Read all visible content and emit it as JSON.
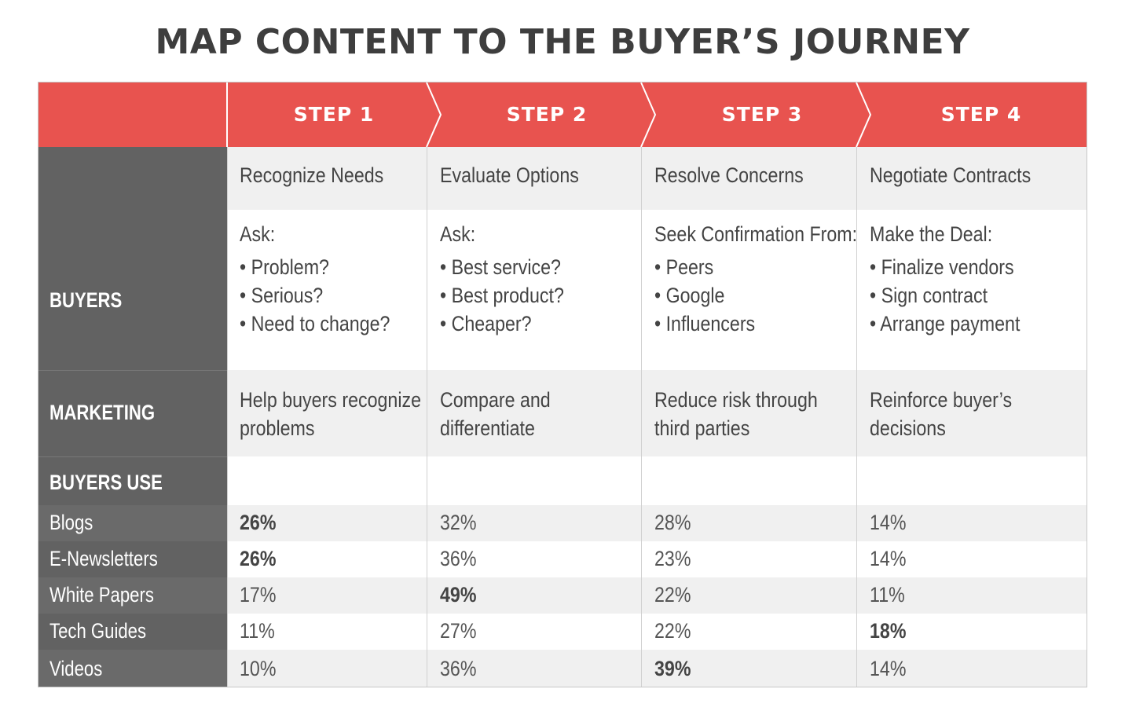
{
  "title": "MAP CONTENT TO THE BUYER’S JOURNEY",
  "steps": [
    "STEP 1",
    "STEP 2",
    "STEP 3",
    "STEP 4"
  ],
  "rows": {
    "buyers": "BUYERS",
    "marketing": "MARKETING",
    "buyers_use": "BUYERS USE"
  },
  "phases": [
    "Recognize Needs",
    "Evaluate Options",
    "Resolve Concerns",
    "Negotiate Contracts"
  ],
  "buyers": [
    {
      "heading": "Ask:",
      "items": [
        "• Problem?",
        "• Serious?",
        "• Need to change?"
      ]
    },
    {
      "heading": "Ask:",
      "items": [
        "• Best service?",
        "• Best product?",
        "• Cheaper?"
      ]
    },
    {
      "heading": "Seek Confirmation From:",
      "items": [
        "• Peers",
        "• Google",
        "• Influencers"
      ]
    },
    {
      "heading": "Make the Deal:",
      "items": [
        "• Finalize vendors",
        "• Sign contract",
        "• Arrange payment"
      ]
    }
  ],
  "marketing": [
    [
      "Help buyers recognize",
      "problems"
    ],
    [
      "Compare and",
      "differentiate"
    ],
    [
      "Reduce risk through",
      "third parties"
    ],
    [
      "Reinforce buyer’s",
      "decisions"
    ]
  ],
  "content_use": [
    {
      "label": "Blogs",
      "values": [
        "26%",
        "32%",
        "28%",
        "14%"
      ],
      "bold": 0
    },
    {
      "label": "E-Newsletters",
      "values": [
        "26%",
        "36%",
        "23%",
        "14%"
      ],
      "bold": 0
    },
    {
      "label": "White Papers",
      "values": [
        "17%",
        "49%",
        "22%",
        "11%"
      ],
      "bold": 1
    },
    {
      "label": "Tech Guides",
      "values": [
        "11%",
        "27%",
        "22%",
        "18%"
      ],
      "bold": 3
    },
    {
      "label": "Videos",
      "values": [
        "10%",
        "36%",
        "39%",
        "14%"
      ],
      "bold": 2
    }
  ],
  "colors": {
    "header": "#e8534f",
    "sidebar": "#626262",
    "band": "#f0f0f0",
    "text": "#444444"
  }
}
